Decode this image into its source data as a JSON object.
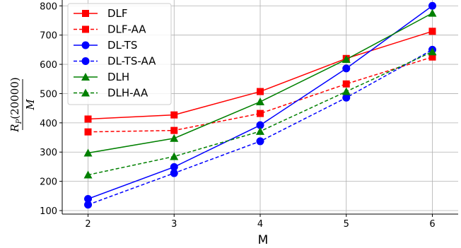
{
  "chart_data": {
    "type": "line",
    "title": "",
    "xlabel": "M",
    "ylabel": {
      "numerator": "R",
      "subscript": "P",
      "argument": "(20000)",
      "denominator": "M"
    },
    "x": [
      2,
      3,
      4,
      5,
      6
    ],
    "xlim": [
      1.7,
      6.3
    ],
    "ylim": [
      88,
      820
    ],
    "xticks": [
      "2",
      "3",
      "4",
      "5",
      "6"
    ],
    "yticks": [
      "100",
      "200",
      "300",
      "400",
      "500",
      "600",
      "700",
      "800"
    ],
    "grid": true,
    "legend_position": "top-left",
    "series": [
      {
        "name": "DLF",
        "values": [
          413,
          427,
          507,
          620,
          713
        ],
        "color": "#ff0000",
        "dash": "solid",
        "marker": "square"
      },
      {
        "name": "DLF-AA",
        "values": [
          369,
          374,
          432,
          533,
          625
        ],
        "color": "#ff0000",
        "dash": "dashed",
        "marker": "square"
      },
      {
        "name": "DL-TS",
        "values": [
          140,
          249,
          392,
          586,
          800
        ],
        "color": "#0000ff",
        "dash": "solid",
        "marker": "circle"
      },
      {
        "name": "DL-TS-AA",
        "values": [
          120,
          228,
          337,
          486,
          650
        ],
        "color": "#0000ff",
        "dash": "dashed",
        "marker": "circle"
      },
      {
        "name": "DLH",
        "values": [
          297,
          347,
          472,
          617,
          775
        ],
        "color": "#008000",
        "dash": "solid",
        "marker": "triangle"
      },
      {
        "name": "DLH-AA",
        "values": [
          222,
          285,
          371,
          507,
          643
        ],
        "color": "#008000",
        "dash": "dashed",
        "marker": "triangle"
      }
    ]
  }
}
